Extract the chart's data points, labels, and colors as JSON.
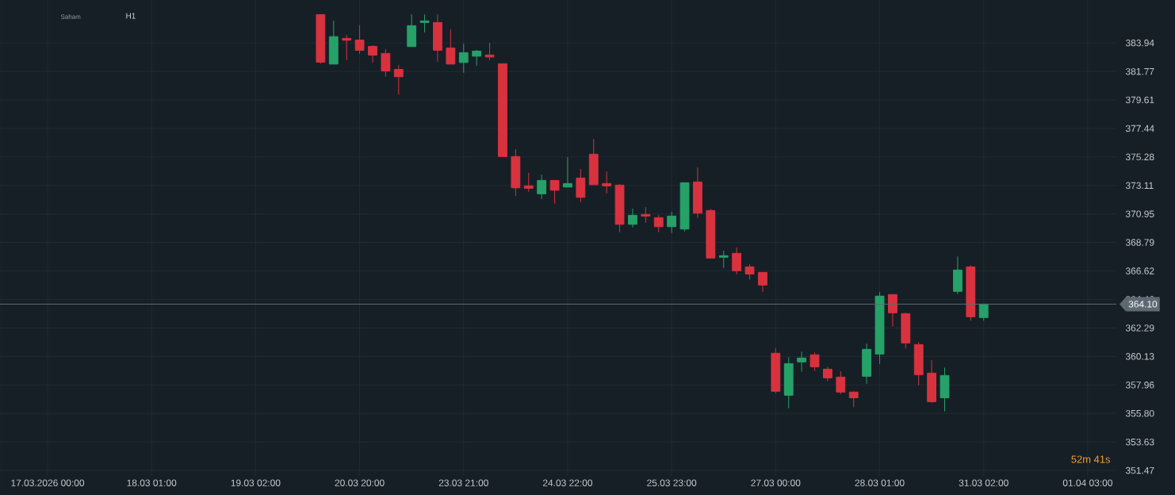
{
  "chart_data": {
    "type": "candlestick",
    "subtitle": "Saham",
    "annotations": [
      "H1",
      "52m 41s"
    ],
    "categories": [
      "17.03.2026 00:00",
      null,
      null,
      null,
      null,
      null,
      null,
      null,
      "18.03 01:00",
      null,
      null,
      null,
      null,
      null,
      null,
      null,
      "19.03 02:00",
      null,
      null,
      null,
      null,
      null,
      null,
      null,
      "20.03 20:00",
      null,
      null,
      null,
      null,
      null,
      null,
      null,
      "23.03 21:00",
      null,
      null,
      null,
      null,
      null,
      null,
      null,
      "24.03 22:00",
      null,
      null,
      null,
      null,
      null,
      null,
      null,
      "25.03 23:00",
      null,
      null,
      null,
      null,
      null,
      null,
      null,
      "27.03 00:00",
      null,
      null,
      null,
      null,
      null,
      null,
      null,
      "28.03 01:00",
      null,
      null,
      null,
      null,
      null,
      null,
      null,
      "31.03 02:00",
      null,
      null,
      null,
      null,
      null,
      null,
      null,
      "01.04 03:00",
      null,
      null
    ],
    "ohlc": [
      null,
      null,
      null,
      null,
      null,
      null,
      null,
      null,
      null,
      null,
      null,
      null,
      null,
      null,
      null,
      null,
      null,
      null,
      null,
      null,
      null,
      [
        386.09,
        386.11,
        382.37,
        382.48
      ],
      [
        382.33,
        385.63,
        382.31,
        384.42
      ],
      [
        384.28,
        384.54,
        382.63,
        384.14
      ],
      [
        384.16,
        385.27,
        383.11,
        383.38
      ],
      [
        383.68,
        383.76,
        382.43,
        383.01
      ],
      [
        383.14,
        383.46,
        381.37,
        381.81
      ],
      [
        381.93,
        382.25,
        380.02,
        381.37
      ],
      [
        383.66,
        386.11,
        383.66,
        385.25
      ],
      [
        385.49,
        386.11,
        384.74,
        385.61
      ],
      [
        385.49,
        386.11,
        382.51,
        383.38
      ],
      [
        383.56,
        384.96,
        382.33,
        382.33
      ],
      [
        382.45,
        383.88,
        381.67,
        383.2
      ],
      [
        382.93,
        383.4,
        382.21,
        383.32
      ],
      [
        383.02,
        383.94,
        382.63,
        382.87
      ],
      [
        382.36,
        382.36,
        375.31,
        375.31
      ],
      [
        375.31,
        375.87,
        372.31,
        372.93
      ],
      [
        373.08,
        374.06,
        372.63,
        372.9
      ],
      [
        372.48,
        373.94,
        372.09,
        373.5
      ],
      [
        373.5,
        373.5,
        371.73,
        372.75
      ],
      [
        372.99,
        375.27,
        372.99,
        373.26
      ],
      [
        373.68,
        374.36,
        371.85,
        372.21
      ],
      [
        375.49,
        376.65,
        373.17,
        373.17
      ],
      [
        373.26,
        374.18,
        372.51,
        373.08
      ],
      [
        373.14,
        373.22,
        369.56,
        370.16
      ],
      [
        370.16,
        371.35,
        369.92,
        370.85
      ],
      [
        370.91,
        371.47,
        370.28,
        370.79
      ],
      [
        370.67,
        370.87,
        369.56,
        369.98
      ],
      [
        369.98,
        371.11,
        369.5,
        370.79
      ],
      [
        369.8,
        373.32,
        369.62,
        373.32
      ],
      [
        373.38,
        374.48,
        370.65,
        371.01
      ],
      [
        371.21,
        371.33,
        367.6,
        367.6
      ],
      [
        367.66,
        368.16,
        366.85,
        367.78
      ],
      [
        367.96,
        368.4,
        366.37,
        366.63
      ],
      [
        366.93,
        367.13,
        365.95,
        366.39
      ],
      [
        366.51,
        366.51,
        365.04,
        365.55
      ],
      [
        360.37,
        360.75,
        357.33,
        357.48
      ],
      [
        357.18,
        360.07,
        356.19,
        359.58
      ],
      [
        359.71,
        360.49,
        358.96,
        360.01
      ],
      [
        360.25,
        360.43,
        359.02,
        359.34
      ],
      [
        359.16,
        359.34,
        358.24,
        358.5
      ],
      [
        358.56,
        359.0,
        357.27,
        357.42
      ],
      [
        357.42,
        357.48,
        356.27,
        356.99
      ],
      [
        358.62,
        361.09,
        358.05,
        360.67
      ],
      [
        360.31,
        365.01,
        359.56,
        364.71
      ],
      [
        364.83,
        364.83,
        362.39,
        363.44
      ],
      [
        363.38,
        363.46,
        360.73,
        361.15
      ],
      [
        361.03,
        361.21,
        357.93,
        358.74
      ],
      [
        358.86,
        359.84,
        356.61,
        356.69
      ],
      [
        356.99,
        359.28,
        355.95,
        358.68
      ],
      [
        365.07,
        367.72,
        364.86,
        366.69
      ],
      [
        366.93,
        367.05,
        362.84,
        363.14
      ],
      [
        363.08,
        364.1,
        362.84,
        364.1
      ],
      null,
      null,
      null,
      null,
      null,
      null,
      null,
      null,
      null,
      null
    ],
    "colors": [
      null,
      null,
      null,
      null,
      null,
      null,
      null,
      null,
      null,
      null,
      null,
      null,
      null,
      null,
      null,
      null,
      null,
      null,
      null,
      null,
      null,
      "#d9323f",
      "#26a269",
      "#d9323f",
      "#d9323f",
      "#d9323f",
      "#d9323f",
      "#d9323f",
      "#26a269",
      "#26a269",
      "#d9323f",
      "#d9323f",
      "#26a269",
      "#26a269",
      "#d9323f",
      "#d9323f",
      "#d9323f",
      "#d9323f",
      "#26a269",
      "#d9323f",
      "#26a269",
      "#d9323f",
      "#d9323f",
      "#d9323f",
      "#d9323f",
      "#26a269",
      "#d9323f",
      "#d9323f",
      "#26a269",
      "#26a269",
      "#d9323f",
      "#d9323f",
      "#26a269",
      "#d9323f",
      "#d9323f",
      "#d9323f",
      "#d9323f",
      "#26a269",
      "#26a269",
      "#d9323f",
      "#d9323f",
      "#d9323f",
      "#d9323f",
      "#26a269",
      "#26a269",
      "#d9323f",
      "#d9323f",
      "#d9323f",
      "#d9323f",
      "#26a269",
      "#26a269",
      "#d9323f",
      "#26a269",
      null,
      null,
      null,
      null,
      null,
      null,
      null,
      null,
      null,
      null
    ],
    "ylim": [
      351.05,
      387.2
    ],
    "yticks": [
      351.47,
      353.63,
      {
        "value": 355.8,
        "label": "355.80"
      },
      357.96,
      360.13,
      362.29,
      364.46,
      366.62,
      368.79,
      370.95,
      373.11,
      375.28,
      377.44,
      379.61,
      381.77,
      383.94
    ],
    "ref_lines": [
      {
        "axis": "y",
        "value": 364.1,
        "label": "364.10",
        "color": "#5d6a73"
      }
    ],
    "grid": true
  }
}
